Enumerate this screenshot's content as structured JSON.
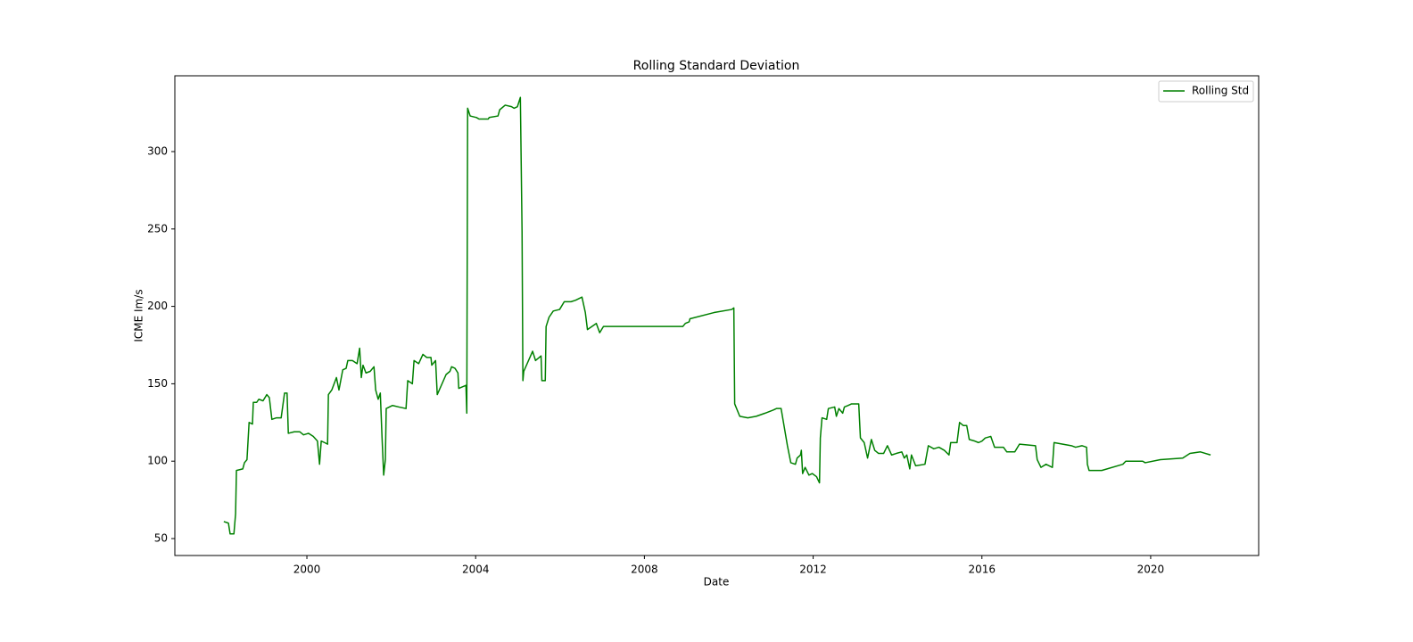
{
  "chart_data": {
    "type": "line",
    "title": "Rolling Standard Deviation",
    "x_label": "Date",
    "y_label": "ICME Im/s",
    "xlim": [
      1996.87,
      2022.56
    ],
    "xticks": [
      2000,
      2004,
      2008,
      2012,
      2016,
      2020
    ],
    "ylim": [
      39.06,
      348.96
    ],
    "yticks": [
      50,
      100,
      150,
      200,
      250,
      300
    ],
    "grid": false,
    "legend": "upper right",
    "x": [
      1998.03,
      1998.14,
      1998.18,
      1998.27,
      1998.31,
      1998.33,
      1998.48,
      1998.52,
      1998.58,
      1998.63,
      1998.71,
      1998.73,
      1998.81,
      1998.86,
      1998.96,
      1999.05,
      1999.11,
      1999.17,
      1999.28,
      1999.39,
      1999.47,
      1999.53,
      1999.56,
      1999.7,
      1999.83,
      1999.92,
      2000.04,
      2000.15,
      2000.25,
      2000.3,
      2000.34,
      2000.42,
      2000.49,
      2000.51,
      2000.59,
      2000.7,
      2000.76,
      2000.85,
      2000.93,
      2000.97,
      2001.08,
      2001.19,
      2001.25,
      2001.29,
      2001.33,
      2001.4,
      2001.5,
      2001.59,
      2001.63,
      2001.69,
      2001.74,
      2001.78,
      2001.82,
      2001.86,
      2001.88,
      2002.03,
      2002.18,
      2002.35,
      2002.39,
      2002.5,
      2002.54,
      2002.65,
      2002.75,
      2002.84,
      2002.94,
      2002.96,
      2003.05,
      2003.09,
      2003.3,
      2003.39,
      2003.43,
      2003.51,
      2003.58,
      2003.6,
      2003.77,
      2003.79,
      2003.81,
      2003.87,
      2004.02,
      2004.08,
      2004.3,
      2004.32,
      2004.53,
      2004.57,
      2004.7,
      2004.85,
      2004.91,
      2004.99,
      2005.06,
      2005.1,
      2005.12,
      2005.14,
      2005.35,
      2005.42,
      2005.55,
      2005.57,
      2005.65,
      2005.67,
      2005.74,
      2005.84,
      2005.99,
      2006.1,
      2006.26,
      2006.37,
      2006.52,
      2006.6,
      2006.65,
      2006.86,
      2006.94,
      2007.03,
      2007.53,
      2008.91,
      2008.97,
      2009.06,
      2009.08,
      2009.65,
      2010.07,
      2010.12,
      2010.14,
      2010.26,
      2010.45,
      2010.65,
      2010.86,
      2011.05,
      2011.13,
      2011.24,
      2011.39,
      2011.47,
      2011.58,
      2011.62,
      2011.7,
      2011.72,
      2011.75,
      2011.81,
      2011.9,
      2011.98,
      2012.08,
      2012.15,
      2012.17,
      2012.21,
      2012.32,
      2012.36,
      2012.51,
      2012.55,
      2012.61,
      2012.7,
      2012.74,
      2012.83,
      2012.91,
      2013.08,
      2013.12,
      2013.21,
      2013.29,
      2013.38,
      2013.46,
      2013.55,
      2013.67,
      2013.76,
      2013.86,
      2013.97,
      2014.1,
      2014.16,
      2014.22,
      2014.29,
      2014.33,
      2014.43,
      2014.65,
      2014.73,
      2014.86,
      2014.98,
      2015.11,
      2015.22,
      2015.26,
      2015.41,
      2015.47,
      2015.56,
      2015.64,
      2015.7,
      2015.83,
      2015.92,
      2016.0,
      2016.08,
      2016.21,
      2016.3,
      2016.51,
      2016.59,
      2016.78,
      2016.89,
      2017.27,
      2017.31,
      2017.4,
      2017.52,
      2017.67,
      2017.71,
      2018.12,
      2018.22,
      2018.37,
      2018.48,
      2018.5,
      2018.54,
      2018.84,
      2019.34,
      2019.41,
      2019.81,
      2019.87,
      2020.23,
      2020.76,
      2020.93,
      2021.18,
      2021.42
    ],
    "series": [
      {
        "name": "Rolling Std",
        "color": "#008000",
        "values": [
          61,
          60,
          53,
          53,
          66,
          94,
          95,
          99,
          101,
          125,
          124,
          138,
          138,
          140,
          139,
          143,
          141,
          127,
          128,
          128,
          144,
          144,
          118,
          119,
          119,
          117,
          118,
          116,
          113,
          98,
          113,
          112,
          111,
          143,
          146,
          154,
          146,
          159,
          160,
          165,
          165,
          163,
          173,
          154,
          162,
          157,
          158,
          161,
          146,
          140,
          144,
          116,
          91,
          101,
          134,
          136,
          135,
          134,
          152,
          150,
          165,
          163,
          169,
          167,
          167,
          162,
          165,
          143,
          156,
          158,
          161,
          160,
          157,
          147,
          149,
          131,
          328,
          323,
          322,
          321,
          321,
          322,
          323,
          327,
          330,
          329,
          328,
          329,
          335,
          248,
          152,
          158,
          171,
          165,
          168,
          152,
          152,
          187,
          193,
          197,
          198,
          203,
          203,
          204,
          206,
          196,
          185,
          189,
          183,
          187,
          187,
          187,
          189,
          190,
          192,
          196,
          198,
          199,
          137,
          129,
          128,
          129,
          131,
          133,
          134,
          134,
          110,
          99,
          98,
          102,
          104,
          107,
          92,
          96,
          91,
          92,
          90,
          86,
          115,
          128,
          127,
          134,
          135,
          129,
          134,
          131,
          135,
          136,
          137,
          137,
          115,
          112,
          102,
          114,
          107,
          105,
          105,
          110,
          104,
          105,
          106,
          102,
          104,
          95,
          104,
          97,
          98,
          110,
          108,
          109,
          107,
          104,
          112,
          112,
          125,
          123,
          123,
          114,
          113,
          112,
          113,
          115,
          116,
          109,
          109,
          106,
          106,
          111,
          110,
          101,
          96,
          98,
          96,
          112,
          110,
          109,
          110,
          109,
          98,
          94,
          94,
          98,
          100,
          100,
          99,
          101,
          102,
          105,
          106,
          104
        ]
      }
    ]
  }
}
